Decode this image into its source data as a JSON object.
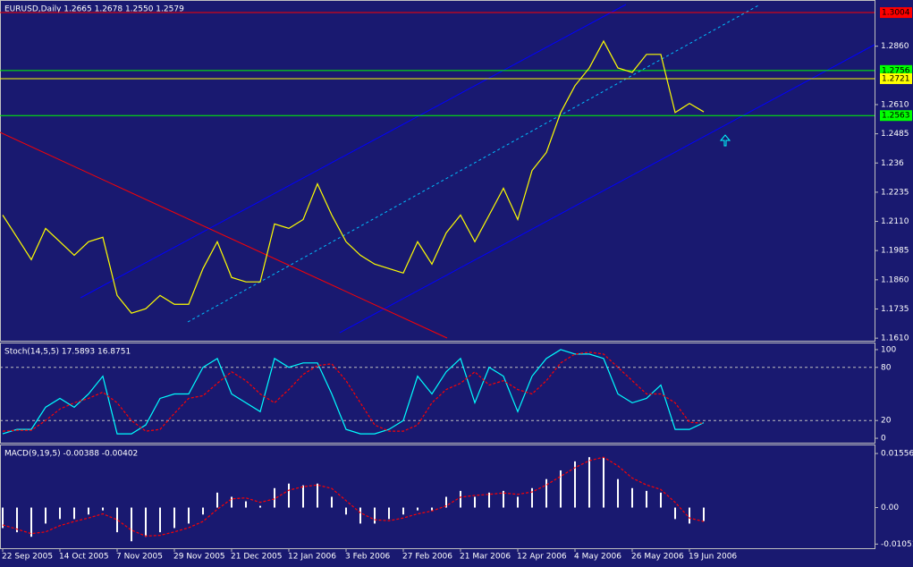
{
  "chart_data": [
    {
      "type": "line",
      "title": "EURUSD,Daily  1.2665 1.2678 1.2550 1.2579",
      "color": "#ffff00",
      "values": [
        1.2137,
        1.2042,
        1.1946,
        1.208,
        1.2023,
        1.1965,
        1.2023,
        1.2042,
        1.1793,
        1.1717,
        1.1736,
        1.1793,
        1.1755,
        1.1755,
        1.1908,
        1.2023,
        1.187,
        1.1851,
        1.1851,
        1.2099,
        1.208,
        1.2118,
        1.2271,
        1.2137,
        1.2023,
        1.1965,
        1.1927,
        1.1908,
        1.1889,
        1.2023,
        1.1927,
        1.2061,
        1.2137,
        1.2023,
        1.2137,
        1.2252,
        1.2118,
        1.2328,
        1.2405,
        1.2576,
        1.2691,
        1.2767,
        1.2882,
        1.2767,
        1.2748,
        1.2825,
        1.2825,
        1.2576,
        1.2615,
        1.2579
      ],
      "ylim": [
        1.1599,
        1.3054
      ],
      "yticks": [
        {
          "value": 1.286,
          "label": "1.2860"
        },
        {
          "value": 1.261,
          "label": "1.2610"
        },
        1.2485,
        1.236,
        1.2235,
        {
          "value": 1.211,
          "label": "1.2110"
        },
        1.1985,
        {
          "value": 1.186,
          "label": "1.1860"
        },
        1.1735,
        {
          "value": 1.161,
          "label": "1.1610"
        }
      ],
      "levels": [
        {
          "value": 1.3004,
          "color": "#ff0000"
        },
        {
          "value": 1.2756,
          "color": "#00ff00"
        },
        {
          "value": 1.2721,
          "color": "#ffff00"
        },
        {
          "value": 1.2563,
          "color": "#00ff00"
        }
      ]
    },
    {
      "type": "line",
      "title": "Stoch(14,5,5) 17.5893 16.8751",
      "series": [
        {
          "color": "#00ffff",
          "values": [
            5,
            10,
            10,
            35,
            45,
            35,
            50,
            70,
            5,
            5,
            15,
            45,
            50,
            50,
            80,
            90,
            50,
            40,
            30,
            90,
            80,
            85,
            85,
            50,
            10,
            5,
            5,
            10,
            20,
            70,
            50,
            75,
            90,
            40,
            80,
            70,
            30,
            70,
            90,
            100,
            95,
            95,
            90,
            50,
            40,
            45,
            60,
            10,
            10,
            17.5893
          ]
        },
        {
          "color": "#ff0000",
          "dash": true,
          "values": [
            8,
            9,
            9,
            20,
            33,
            40,
            45,
            52,
            40,
            20,
            8,
            10,
            28,
            45,
            48,
            62,
            75,
            65,
            50,
            40,
            55,
            72,
            82,
            84,
            65,
            40,
            15,
            8,
            8,
            15,
            40,
            55,
            62,
            75,
            60,
            65,
            55,
            50,
            65,
            85,
            95,
            97,
            95,
            80,
            65,
            50,
            50,
            40,
            18,
            16.8751
          ]
        }
      ],
      "ylim": [
        -5,
        107
      ],
      "yticks": [
        100,
        80,
        20,
        0
      ],
      "levels": [
        80,
        20
      ]
    },
    {
      "type": "bar",
      "title": "MACD(9,19,5) -0.00388 -0.00402",
      "categories": [
        "22 Sep 2005",
        null,
        null,
        null,
        "14 Oct 2005",
        null,
        null,
        null,
        "7 Nov 2005",
        null,
        null,
        null,
        "29 Nov 2005",
        null,
        null,
        null,
        "21 Dec 2005",
        null,
        null,
        null,
        "12 Jan 2006",
        null,
        null,
        null,
        "3 Feb 2006",
        null,
        null,
        null,
        "27 Feb 2006",
        null,
        null,
        null,
        "21 Mar 2006",
        null,
        null,
        null,
        "12 Apr 2006",
        null,
        null,
        null,
        "4 May 2006",
        null,
        null,
        null,
        "26 May 2006",
        null,
        null,
        null,
        "19 Jun 2006",
        null
      ],
      "series": [
        {
          "color": "#ffffff",
          "values": [
            -0.0059,
            -0.0071,
            -0.0084,
            -0.0046,
            -0.0033,
            -0.0033,
            -0.002,
            -0.0008,
            -0.0071,
            -0.0097,
            -0.0084,
            -0.0071,
            -0.0059,
            -0.0046,
            -0.002,
            0.0043,
            0.0031,
            0.0018,
            0.0005,
            0.0056,
            0.0069,
            0.0064,
            0.0069,
            0.0031,
            -0.002,
            -0.0046,
            -0.0046,
            -0.0033,
            -0.002,
            -0.0008,
            -0.0008,
            0.0031,
            0.0048,
            0.0031,
            0.0043,
            0.0048,
            0.0031,
            0.0056,
            0.0082,
            0.0107,
            0.0133,
            0.0145,
            0.0145,
            0.0082,
            0.0056,
            0.0048,
            0.0043,
            -0.0033,
            -0.0046,
            -0.00388
          ]
        },
        {
          "color": "#ff0000",
          "dash": true,
          "values": [
            -0.005,
            -0.0062,
            -0.0075,
            -0.007,
            -0.0052,
            -0.004,
            -0.003,
            -0.0018,
            -0.0035,
            -0.0065,
            -0.0082,
            -0.008,
            -0.007,
            -0.0058,
            -0.004,
            -0.0005,
            0.0025,
            0.0028,
            0.0015,
            0.0025,
            0.005,
            0.006,
            0.0065,
            0.0055,
            0.002,
            -0.0015,
            -0.0035,
            -0.0038,
            -0.003,
            -0.0018,
            -0.001,
            0.0005,
            0.003,
            0.0035,
            0.0038,
            0.0042,
            0.0038,
            0.0045,
            0.0065,
            0.009,
            0.0115,
            0.0135,
            0.0145,
            0.012,
            0.0085,
            0.0065,
            0.0052,
            0.0015,
            -0.003,
            -0.00402
          ]
        }
      ],
      "ylim": [
        -0.0117,
        0.0179
      ],
      "yticks": [
        0.01556,
        {
          "value": 0,
          "label": "0.00"
        },
        -0.01051
      ]
    }
  ]
}
